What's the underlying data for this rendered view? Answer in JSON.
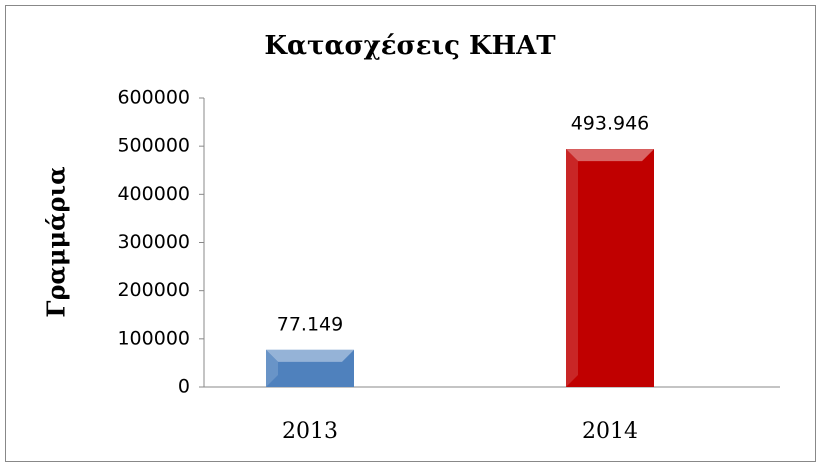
{
  "chart_data": {
    "type": "bar",
    "title": "Κατασχέσεις ΚΗΑΤ",
    "y_label": "Γραμμάρια",
    "categories": [
      "2013",
      "2014"
    ],
    "values": [
      77149,
      493946
    ],
    "value_labels": [
      "77.149",
      "493.946"
    ],
    "colors": [
      "#4f81bd",
      "#c00000"
    ],
    "ylim": [
      0,
      600000
    ],
    "yticks": [
      0,
      100000,
      200000,
      300000,
      400000,
      500000,
      600000
    ],
    "grid": false
  }
}
